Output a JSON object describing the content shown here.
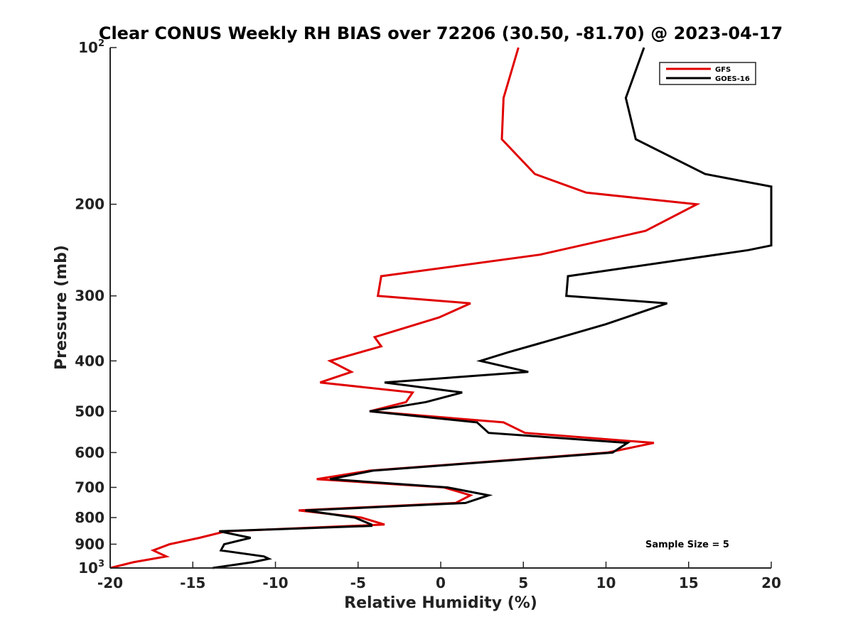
{
  "chart_data": {
    "type": "line",
    "title": "Clear CONUS Weekly RH BIAS over 72206 (30.50, -81.70) @ 2023-04-17",
    "xlabel": "Relative Humidity (%)",
    "ylabel": "Pressure (mb)",
    "xlim": [
      -20,
      20
    ],
    "ylim": [
      100,
      1000
    ],
    "y_scale": "log",
    "y_reversed": true,
    "x_ticks": [
      -20,
      -15,
      -10,
      -5,
      0,
      5,
      10,
      15,
      20
    ],
    "x_tick_labels": [
      "-20",
      "-15",
      "-10",
      "-5",
      "0",
      "5",
      "10",
      "15",
      "20"
    ],
    "y_ticks": [
      100,
      200,
      300,
      400,
      500,
      600,
      700,
      800,
      900,
      1000
    ],
    "y_tick_labels": [
      {
        "base": "10",
        "exp": "2"
      },
      {
        "base": "200",
        "exp": ""
      },
      {
        "base": "300",
        "exp": ""
      },
      {
        "base": "400",
        "exp": ""
      },
      {
        "base": "500",
        "exp": ""
      },
      {
        "base": "600",
        "exp": ""
      },
      {
        "base": "700",
        "exp": ""
      },
      {
        "base": "800",
        "exp": ""
      },
      {
        "base": "900",
        "exp": ""
      },
      {
        "base": "10",
        "exp": "3"
      }
    ],
    "grid": false,
    "legend": "top-right",
    "annotation": "Sample Size = 5",
    "series": [
      {
        "name": "GFS",
        "color": "#e00000",
        "points": [
          {
            "x": 4.7,
            "y": 100
          },
          {
            "x": 3.8,
            "y": 125
          },
          {
            "x": 3.7,
            "y": 150
          },
          {
            "x": 5.7,
            "y": 175
          },
          {
            "x": 8.8,
            "y": 190
          },
          {
            "x": 15.5,
            "y": 200
          },
          {
            "x": 12.4,
            "y": 225
          },
          {
            "x": 6.0,
            "y": 250
          },
          {
            "x": -3.6,
            "y": 275
          },
          {
            "x": -3.8,
            "y": 300
          },
          {
            "x": 1.8,
            "y": 310
          },
          {
            "x": -0.1,
            "y": 330
          },
          {
            "x": -4.0,
            "y": 360
          },
          {
            "x": -3.6,
            "y": 375
          },
          {
            "x": -6.7,
            "y": 400
          },
          {
            "x": -5.4,
            "y": 420
          },
          {
            "x": -7.3,
            "y": 440
          },
          {
            "x": -1.7,
            "y": 460
          },
          {
            "x": -2.1,
            "y": 480
          },
          {
            "x": -4.3,
            "y": 500
          },
          {
            "x": 3.8,
            "y": 525
          },
          {
            "x": 5.1,
            "y": 550
          },
          {
            "x": 12.9,
            "y": 575
          },
          {
            "x": 10.1,
            "y": 600
          },
          {
            "x": 2.8,
            "y": 625
          },
          {
            "x": -4.3,
            "y": 650
          },
          {
            "x": -7.5,
            "y": 675
          },
          {
            "x": 0.2,
            "y": 700
          },
          {
            "x": 1.8,
            "y": 725
          },
          {
            "x": 0.9,
            "y": 750
          },
          {
            "x": -8.6,
            "y": 775
          },
          {
            "x": -4.8,
            "y": 800
          },
          {
            "x": -3.4,
            "y": 825
          },
          {
            "x": -13.0,
            "y": 850
          },
          {
            "x": -14.6,
            "y": 875
          },
          {
            "x": -16.4,
            "y": 900
          },
          {
            "x": -17.4,
            "y": 925
          },
          {
            "x": -16.6,
            "y": 950
          },
          {
            "x": -18.6,
            "y": 975
          },
          {
            "x": -20.0,
            "y": 1000
          }
        ]
      },
      {
        "name": "GOES-16",
        "color": "#000000",
        "points": [
          {
            "x": 12.3,
            "y": 100
          },
          {
            "x": 11.2,
            "y": 125
          },
          {
            "x": 11.8,
            "y": 150
          },
          {
            "x": 16.0,
            "y": 175
          },
          {
            "x": 20.0,
            "y": 185
          },
          {
            "x": 20.0,
            "y": 240
          },
          {
            "x": 18.6,
            "y": 245
          },
          {
            "x": 7.7,
            "y": 275
          },
          {
            "x": 7.6,
            "y": 300
          },
          {
            "x": 13.7,
            "y": 310
          },
          {
            "x": 10.0,
            "y": 340
          },
          {
            "x": 6.0,
            "y": 370
          },
          {
            "x": 4.1,
            "y": 385
          },
          {
            "x": 2.4,
            "y": 400
          },
          {
            "x": 5.3,
            "y": 420
          },
          {
            "x": -3.4,
            "y": 440
          },
          {
            "x": 1.3,
            "y": 460
          },
          {
            "x": -0.9,
            "y": 480
          },
          {
            "x": -4.3,
            "y": 500
          },
          {
            "x": 2.2,
            "y": 525
          },
          {
            "x": 2.9,
            "y": 550
          },
          {
            "x": 11.3,
            "y": 575
          },
          {
            "x": 10.4,
            "y": 600
          },
          {
            "x": 3.0,
            "y": 625
          },
          {
            "x": -4.1,
            "y": 650
          },
          {
            "x": -6.7,
            "y": 675
          },
          {
            "x": 0.4,
            "y": 700
          },
          {
            "x": 2.9,
            "y": 725
          },
          {
            "x": 1.5,
            "y": 750
          },
          {
            "x": -8.2,
            "y": 775
          },
          {
            "x": -5.2,
            "y": 800
          },
          {
            "x": -4.2,
            "y": 825
          },
          {
            "x": -4.2,
            "y": 830
          },
          {
            "x": -13.4,
            "y": 850
          },
          {
            "x": -11.5,
            "y": 875
          },
          {
            "x": -13.1,
            "y": 900
          },
          {
            "x": -13.3,
            "y": 925
          },
          {
            "x": -10.7,
            "y": 950
          },
          {
            "x": -10.4,
            "y": 960
          },
          {
            "x": -11.4,
            "y": 975
          },
          {
            "x": -13.8,
            "y": 1000
          }
        ]
      }
    ]
  }
}
